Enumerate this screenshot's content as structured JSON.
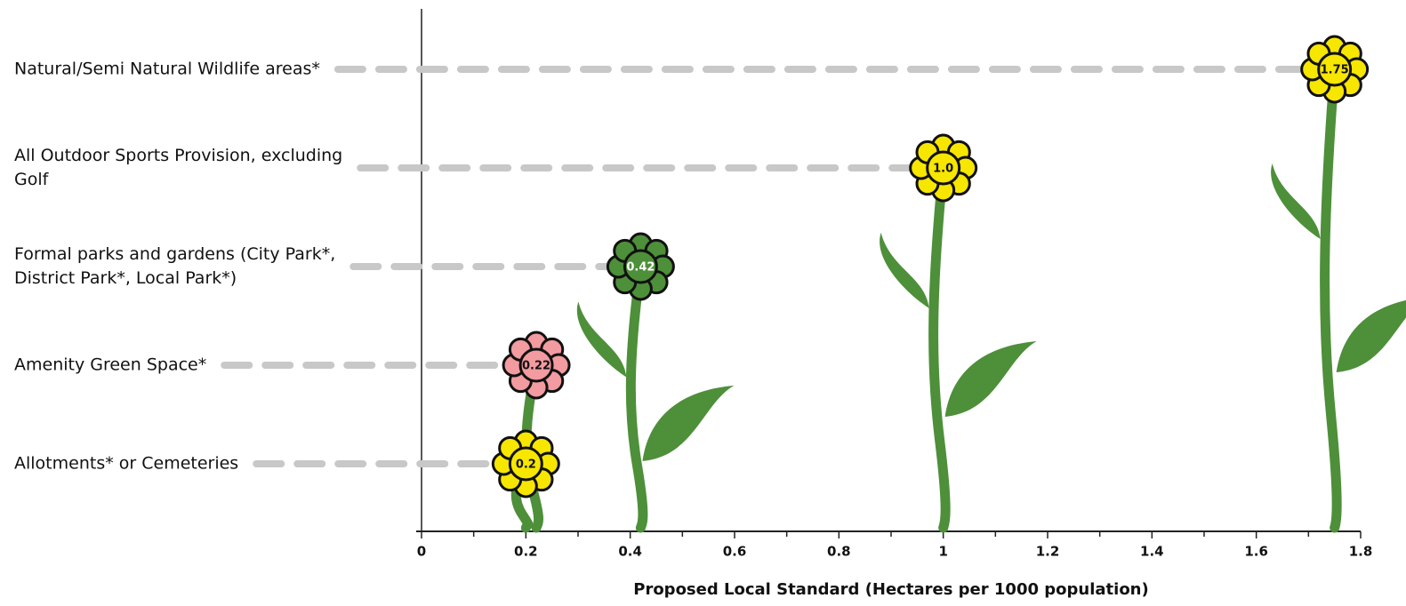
{
  "chart_data": {
    "type": "flower",
    "categories": [
      "Natural/Semi Natural Wildlife areas*",
      "All Outdoor Sports Provision, excluding Golf",
      "Formal parks and gardens (City Park*, District Park*, Local Park*)",
      "Amenity Green Space*",
      "Allotments* or Cemeteries"
    ],
    "values": [
      1.75,
      1,
      0.42,
      0.22,
      0.2
    ],
    "value_labels": [
      "1.75",
      "1.0",
      "0.42",
      "0.22",
      "0.2"
    ],
    "colors": [
      "#f7e600",
      "#f7e600",
      "#4e8f3a",
      "#f29ba0",
      "#f7e600"
    ],
    "stem_color": "#4e8f3a",
    "x_label": "Proposed Local Standard (Hectares per 1000 population)",
    "xlim": [
      0,
      1.8
    ],
    "xticks": [
      0,
      0.2,
      0.4,
      0.6,
      0.8,
      1,
      1.2,
      1.4,
      1.6,
      1.8
    ],
    "xticks_minor": [
      0.1,
      0.3,
      0.5,
      0.7,
      0.9,
      1.1,
      1.3,
      1.5,
      1.7
    ]
  }
}
